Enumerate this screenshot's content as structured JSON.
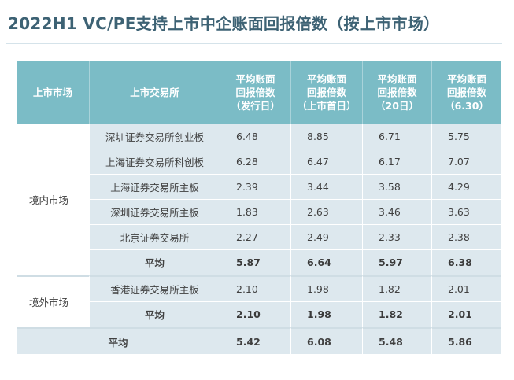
{
  "title": "2022H1 VC/PE支持上市中企账面回报倍数（按上市市场）",
  "table": {
    "headers": {
      "market": "上市市场",
      "exchange": "上市交易所",
      "col1": [
        "平均账面",
        "回报倍数",
        "（发行日）"
      ],
      "col2": [
        "平均账面",
        "回报倍数",
        "（上市首日）"
      ],
      "col3": [
        "平均账面",
        "回报倍数",
        "（20日）"
      ],
      "col4": [
        "平均账面",
        "回报倍数",
        "（6.30）"
      ]
    },
    "groups": [
      {
        "market": "境内市场",
        "rows": [
          {
            "exchange": "深圳证券交易所创业板",
            "values": [
              "6.48",
              "8.85",
              "6.71",
              "5.75"
            ]
          },
          {
            "exchange": "上海证券交易所科创板",
            "values": [
              "6.28",
              "6.47",
              "6.17",
              "7.07"
            ]
          },
          {
            "exchange": "上海证券交易所主板",
            "values": [
              "2.39",
              "3.44",
              "3.58",
              "4.29"
            ]
          },
          {
            "exchange": "深圳证券交易所主板",
            "values": [
              "1.83",
              "2.63",
              "3.46",
              "3.63"
            ]
          },
          {
            "exchange": "北京证券交易所",
            "values": [
              "2.27",
              "2.49",
              "2.33",
              "2.38"
            ]
          }
        ],
        "average": {
          "label": "平均",
          "values": [
            "5.87",
            "6.64",
            "5.97",
            "6.38"
          ]
        }
      },
      {
        "market": "境外市场",
        "rows": [
          {
            "exchange": "香港证券交易所主板",
            "values": [
              "2.10",
              "1.98",
              "1.82",
              "2.01"
            ]
          }
        ],
        "average": {
          "label": "平均",
          "values": [
            "2.10",
            "1.98",
            "1.82",
            "2.01"
          ]
        }
      }
    ],
    "total": {
      "label": "平均",
      "values": [
        "5.42",
        "6.08",
        "5.48",
        "5.86"
      ]
    }
  },
  "colors": {
    "header": "#7bbcc6",
    "band": "#dde8ee",
    "title": "#3d6274"
  }
}
